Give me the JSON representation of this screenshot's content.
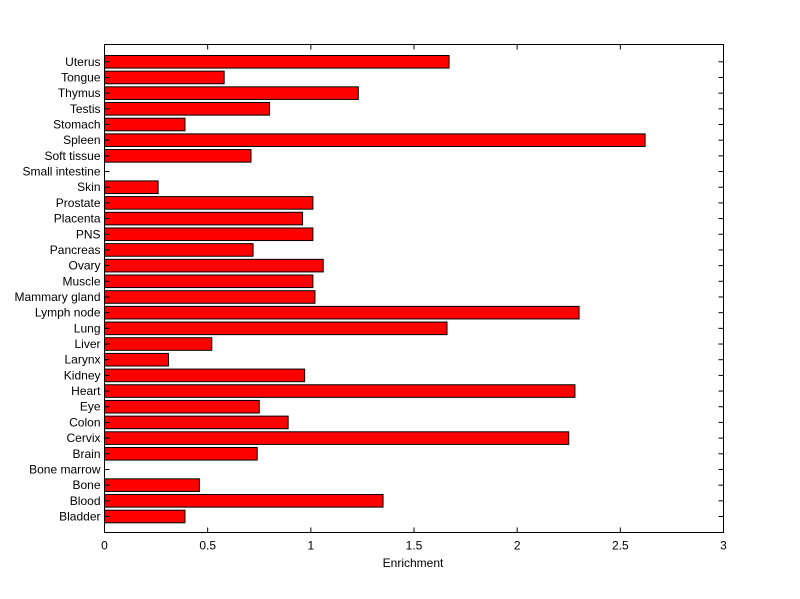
{
  "chart_data": {
    "type": "bar",
    "orientation": "horizontal",
    "title": "",
    "xlabel": "Enrichment",
    "ylabel": "",
    "xlim": [
      0,
      3
    ],
    "xticks": [
      0,
      0.5,
      1,
      1.5,
      2,
      2.5,
      3
    ],
    "xtick_labels": [
      "0",
      "0.5",
      "1",
      "1.5",
      "2",
      "2.5",
      "3"
    ],
    "grid": false,
    "bar_color": "#ff0000",
    "edge_color": "#000000",
    "categories": [
      "Bladder",
      "Blood",
      "Bone",
      "Bone marrow",
      "Brain",
      "Cervix",
      "Colon",
      "Eye",
      "Heart",
      "Kidney",
      "Larynx",
      "Liver",
      "Lung",
      "Lymph node",
      "Mammary gland",
      "Muscle",
      "Ovary",
      "Pancreas",
      "PNS",
      "Placenta",
      "Prostate",
      "Skin",
      "Small intestine",
      "Soft tissue",
      "Spleen",
      "Stomach",
      "Testis",
      "Thymus",
      "Tongue",
      "Uterus"
    ],
    "values": [
      0.39,
      1.35,
      0.46,
      0.0,
      0.74,
      2.25,
      0.89,
      0.75,
      2.28,
      0.97,
      0.31,
      0.52,
      1.66,
      2.3,
      1.02,
      1.01,
      1.06,
      0.72,
      1.01,
      0.96,
      1.01,
      0.26,
      0.0,
      0.71,
      2.62,
      0.39,
      0.8,
      1.23,
      0.58,
      1.67
    ]
  }
}
